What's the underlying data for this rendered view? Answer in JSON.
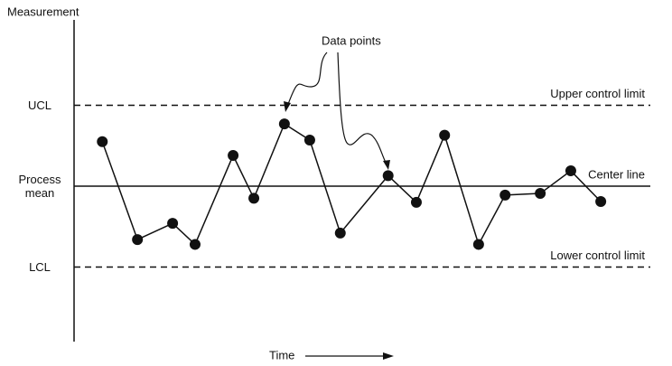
{
  "chart_data": {
    "type": "line",
    "y_label": "Measurement",
    "x_label": "Time",
    "annotation": "Data points",
    "limit_labels": [
      "Upper control limit",
      "Center line",
      "Lower control limit"
    ],
    "x": [
      4.9,
      11.0,
      17.1,
      21.0,
      27.6,
      31.2,
      36.5,
      40.9,
      46.2,
      54.5,
      59.4,
      64.3,
      70.2,
      74.8,
      80.9,
      86.2,
      91.4
    ],
    "values": [
      0.55,
      -0.66,
      -0.46,
      -0.72,
      0.38,
      -0.15,
      0.77,
      0.57,
      -0.58,
      0.13,
      -0.2,
      0.63,
      -0.72,
      -0.11,
      -0.09,
      0.19,
      -0.19
    ],
    "color": "#111111",
    "xlim": [
      0,
      100
    ],
    "ylim": [
      -2,
      2
    ],
    "yticks": [
      {
        "value": 1,
        "label": "UCL"
      },
      {
        "value": 0,
        "label": "Process mean"
      },
      {
        "value": -1,
        "label": "LCL"
      }
    ]
  }
}
